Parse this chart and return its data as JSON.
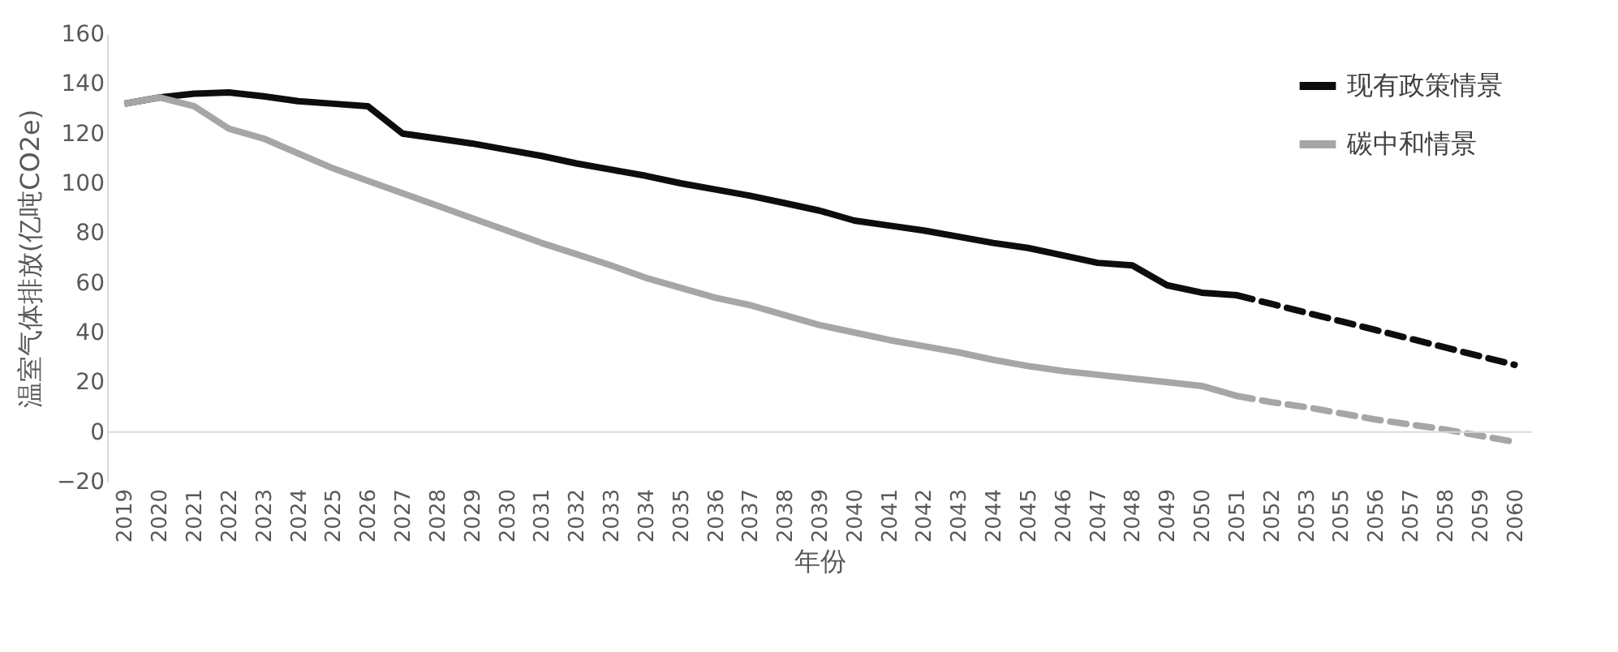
{
  "chart_data": {
    "type": "line",
    "xlabel": "年份",
    "ylabel": "温室气体排放(亿吨CO2e)",
    "categories": [
      "2019",
      "2020",
      "2021",
      "2022",
      "2023",
      "2024",
      "2025",
      "2026",
      "2027",
      "2028",
      "2029",
      "2030",
      "2031",
      "2032",
      "2033",
      "2034",
      "2035",
      "2036",
      "2037",
      "2038",
      "2039",
      "2040",
      "2041",
      "2042",
      "2043",
      "2044",
      "2045",
      "2046",
      "2047",
      "2048",
      "2049",
      "2050",
      "2051",
      "2052",
      "2053",
      "2055",
      "2056",
      "2057",
      "2058",
      "2059",
      "2060"
    ],
    "ylim": [
      -20,
      160
    ],
    "yticks": [
      -20,
      0,
      20,
      40,
      60,
      80,
      100,
      120,
      140,
      160
    ],
    "grid": false,
    "legend": "top right",
    "marker": "none",
    "ref_lines": [
      {
        "axis": "y",
        "value": 0,
        "color": "#d9d9d9"
      }
    ],
    "series": [
      {
        "name": "现有政策情景",
        "color": "#0d0d0d",
        "line_style": "solid",
        "values": [
          132,
          134.5,
          136,
          136.5,
          135,
          133,
          132,
          131,
          120,
          118,
          116,
          113.5,
          111,
          108,
          105.5,
          103,
          100,
          97.5,
          95,
          92,
          89,
          85,
          83,
          81,
          78.5,
          76,
          74,
          71,
          68,
          67,
          59,
          56,
          55,
          null,
          null,
          null,
          null,
          null,
          null,
          null,
          null
        ]
      },
      {
        "name": "碳中和情景",
        "color": "#a6a6a6",
        "line_style": "solid",
        "values": [
          132,
          134.5,
          131,
          122,
          118,
          112,
          106,
          101,
          96,
          91,
          86,
          81,
          76,
          71.5,
          67,
          62,
          58,
          54,
          51,
          47,
          43,
          40,
          37,
          34.5,
          32,
          29,
          26.5,
          24.5,
          23,
          21.5,
          20,
          18.5,
          14.5,
          null,
          null,
          null,
          null,
          null,
          null,
          null,
          null
        ]
      },
      {
        "color": "#0d0d0d",
        "line_style": "dashed",
        "values": [
          null,
          null,
          null,
          null,
          null,
          null,
          null,
          null,
          null,
          null,
          null,
          null,
          null,
          null,
          null,
          null,
          null,
          null,
          null,
          null,
          null,
          null,
          null,
          null,
          null,
          null,
          null,
          null,
          null,
          null,
          null,
          null,
          55,
          51.5,
          48,
          44.5,
          41,
          37.5,
          34,
          30.5,
          27
        ]
      },
      {
        "color": "#a6a6a6",
        "line_style": "dashed",
        "values": [
          null,
          null,
          null,
          null,
          null,
          null,
          null,
          null,
          null,
          null,
          null,
          null,
          null,
          null,
          null,
          null,
          null,
          null,
          null,
          null,
          null,
          null,
          null,
          null,
          null,
          null,
          null,
          null,
          null,
          null,
          null,
          null,
          14.5,
          12,
          10,
          7.5,
          5,
          3,
          1,
          -1.5,
          -4
        ]
      }
    ]
  }
}
